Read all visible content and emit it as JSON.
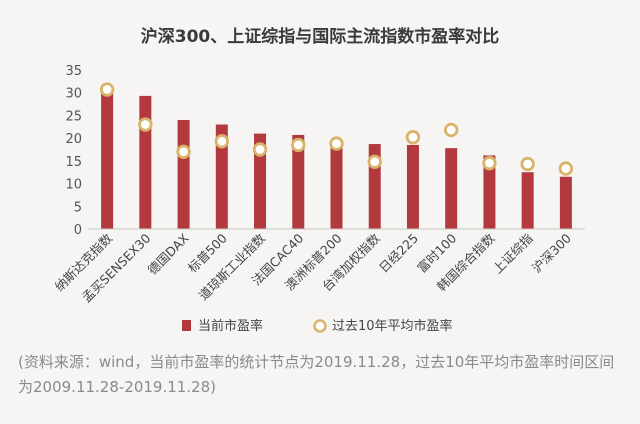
{
  "chart_data": {
    "type": "bar",
    "title": "沪深300、上证综指与国际主流指数市盈率对比",
    "categories": [
      "纳斯达克指数",
      "孟买SENSEX30",
      "德国DAX",
      "标普500",
      "道琼斯工业指数",
      "法国CAC40",
      "澳洲标普200",
      "台湾加权指数",
      "日经225",
      "富时100",
      "韩国综合指数",
      "上证综指",
      "沪深300"
    ],
    "series": [
      {
        "name": "当前市盈率",
        "kind": "bar",
        "values": [
          30.5,
          29.3,
          24.0,
          23.0,
          21.0,
          20.7,
          19.0,
          18.7,
          18.5,
          17.8,
          16.2,
          12.5,
          11.5
        ]
      },
      {
        "name": "过去10年平均市盈率",
        "kind": "marker",
        "values": [
          30.7,
          23.0,
          17.0,
          19.3,
          17.5,
          18.5,
          18.8,
          14.8,
          20.2,
          21.8,
          14.5,
          14.3,
          13.3
        ]
      }
    ],
    "yticks": [
      0,
      5,
      10,
      15,
      20,
      25,
      30,
      35
    ],
    "ylim": [
      0,
      35
    ],
    "colors": {
      "bar": "#b23a3f",
      "marker_ring": "#d9b36a",
      "marker_fill": "#ffffff"
    }
  },
  "source_note": "(资料来源：wind，当前市盈率的统计节点为2019.11.28，过去10年平均市盈率时间区间为2009.11.28-2019.11.28)"
}
